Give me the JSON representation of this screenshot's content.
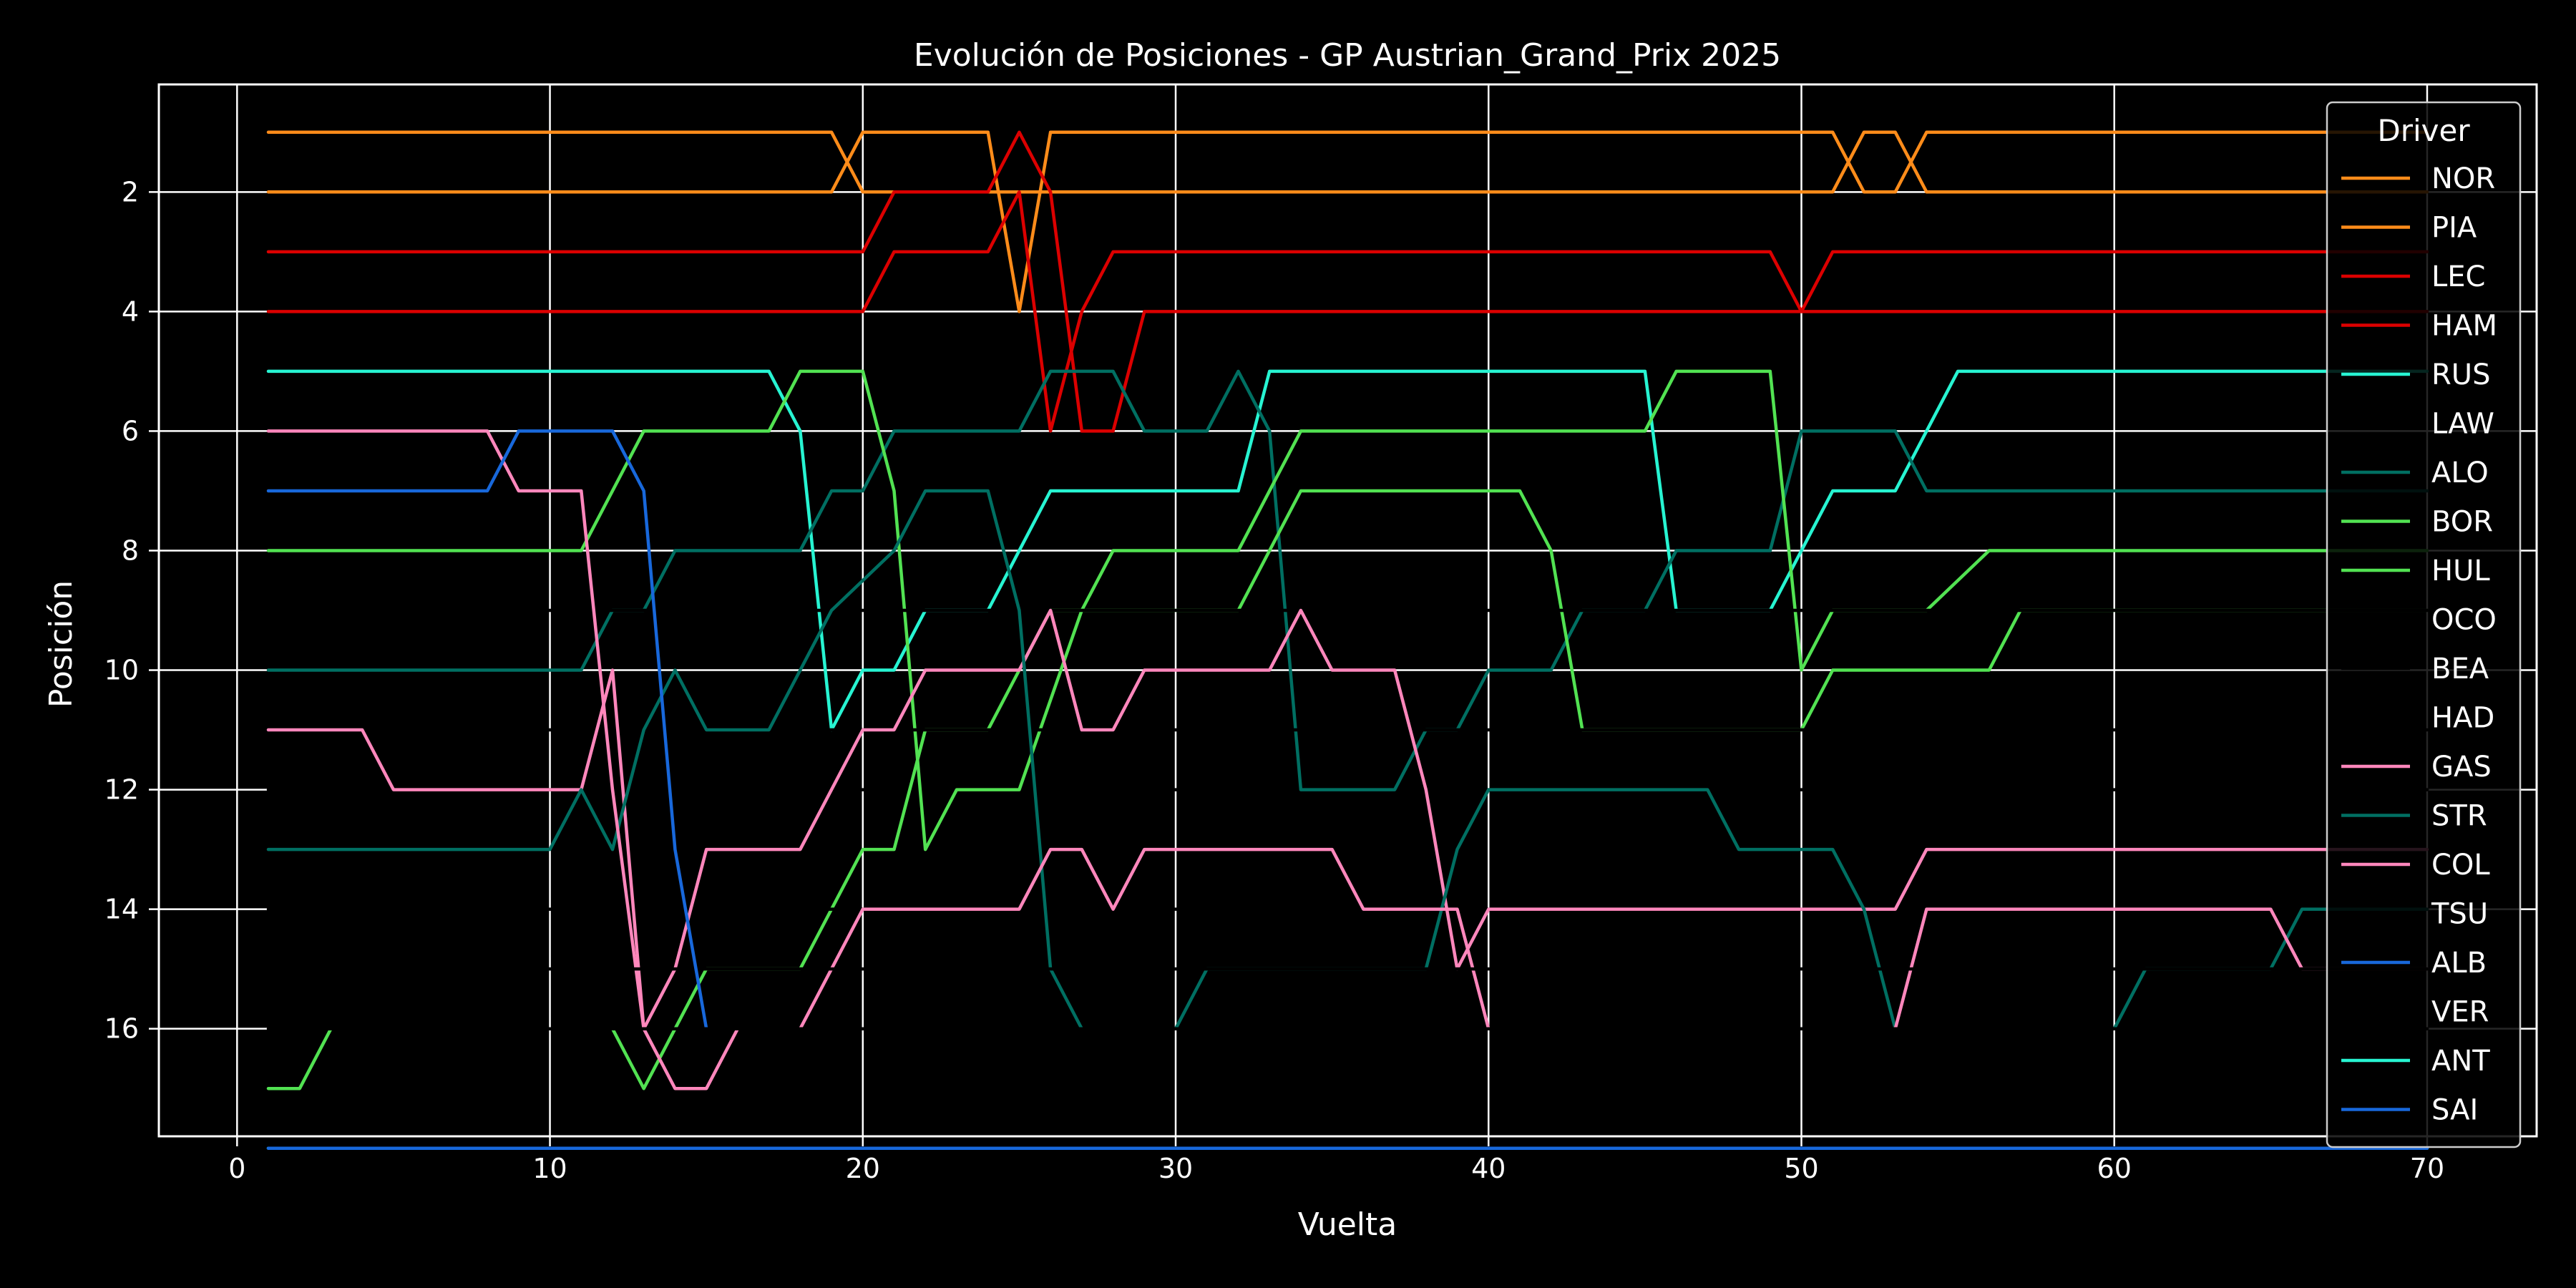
{
  "chart_data": {
    "type": "line",
    "title": "Evolución de Posiciones - GP Austrian_Grand_Prix 2025",
    "xlabel": "Vuelta",
    "ylabel": "Posición",
    "xlim": [
      -2.5,
      73.5
    ],
    "ylim": [
      17.8,
      0.2
    ],
    "y_inverted": true,
    "x_ticks": [
      0,
      10,
      20,
      30,
      40,
      50,
      60,
      70
    ],
    "y_ticks": [
      2,
      4,
      6,
      8,
      10,
      12,
      14,
      16
    ],
    "grid": true,
    "legend": {
      "title": "Driver",
      "position": "top-right"
    },
    "colors": {
      "background": "#000000",
      "text": "#ffffff",
      "grid": "#ffffff"
    },
    "series": [
      {
        "name": "NOR",
        "color": "#ff8c1a",
        "points": [
          [
            1,
            1
          ],
          [
            19,
            1
          ],
          [
            20,
            2
          ],
          [
            51,
            2
          ],
          [
            52,
            1
          ],
          [
            53,
            1
          ],
          [
            54,
            2
          ],
          [
            70,
            2
          ]
        ]
      },
      {
        "name": "PIA",
        "color": "#ff8c1a",
        "points": [
          [
            1,
            2
          ],
          [
            19,
            2
          ],
          [
            20,
            1
          ],
          [
            24,
            1
          ],
          [
            25,
            4
          ],
          [
            26,
            1
          ],
          [
            51,
            1
          ],
          [
            52,
            2
          ],
          [
            53,
            2
          ],
          [
            54,
            1
          ],
          [
            70,
            1
          ]
        ]
      },
      {
        "name": "LEC",
        "color": "#dc0000",
        "points": [
          [
            1,
            3
          ],
          [
            20,
            3
          ],
          [
            21,
            2
          ],
          [
            24,
            2
          ],
          [
            25,
            1
          ],
          [
            26,
            2
          ],
          [
            27,
            6
          ],
          [
            28,
            6
          ],
          [
            29,
            4
          ],
          [
            70,
            4
          ]
        ]
      },
      {
        "name": "HAM",
        "color": "#dc0000",
        "points": [
          [
            1,
            4
          ],
          [
            20,
            4
          ],
          [
            21,
            3
          ],
          [
            24,
            3
          ],
          [
            25,
            2
          ],
          [
            26,
            6
          ],
          [
            27,
            4
          ],
          [
            28,
            3
          ],
          [
            49,
            3
          ],
          [
            50,
            4
          ],
          [
            51,
            3
          ],
          [
            70,
            3
          ]
        ]
      },
      {
        "name": "RUS",
        "color": "#27f4d2",
        "points": [
          [
            1,
            5
          ],
          [
            17,
            5
          ],
          [
            18,
            6
          ],
          [
            19,
            11
          ],
          [
            20,
            10
          ],
          [
            21,
            10
          ],
          [
            22,
            9
          ],
          [
            24,
            9
          ],
          [
            26,
            7
          ],
          [
            32,
            7
          ],
          [
            33,
            5
          ],
          [
            45,
            5
          ],
          [
            46,
            9
          ],
          [
            49,
            9
          ],
          [
            51,
            7
          ],
          [
            53,
            7
          ],
          [
            55,
            5
          ],
          [
            70,
            5
          ]
        ]
      },
      {
        "name": "LAW",
        "color": "#000000",
        "points": [
          [
            1,
            12
          ],
          [
            70,
            12
          ]
        ]
      },
      {
        "name": "ALO",
        "color": "#006f62",
        "points": [
          [
            1,
            10
          ],
          [
            11,
            10
          ],
          [
            12,
            9
          ],
          [
            13,
            9
          ],
          [
            14,
            8
          ],
          [
            18,
            8
          ],
          [
            19,
            7
          ],
          [
            20,
            7
          ],
          [
            21,
            6
          ],
          [
            25,
            6
          ],
          [
            26,
            5
          ],
          [
            28,
            5
          ],
          [
            29,
            6
          ],
          [
            31,
            6
          ],
          [
            32,
            5
          ],
          [
            33,
            6
          ],
          [
            34,
            12
          ],
          [
            37,
            12
          ],
          [
            38,
            11
          ],
          [
            39,
            11
          ],
          [
            40,
            10
          ],
          [
            42,
            10
          ],
          [
            43,
            9
          ],
          [
            45,
            9
          ],
          [
            46,
            8
          ],
          [
            49,
            8
          ],
          [
            50,
            6
          ],
          [
            53,
            6
          ],
          [
            54,
            7
          ],
          [
            70,
            7
          ]
        ]
      },
      {
        "name": "BOR",
        "color": "#52e252",
        "points": [
          [
            1,
            17
          ],
          [
            2,
            17
          ],
          [
            3,
            16
          ],
          [
            12,
            16
          ],
          [
            13,
            17
          ],
          [
            15,
            15
          ],
          [
            18,
            15
          ],
          [
            20,
            13
          ],
          [
            21,
            13
          ],
          [
            22,
            11
          ],
          [
            24,
            11
          ],
          [
            25,
            10
          ],
          [
            26,
            9
          ],
          [
            27,
            9
          ],
          [
            28,
            8
          ],
          [
            32,
            8
          ],
          [
            34,
            6
          ],
          [
            45,
            6
          ],
          [
            46,
            5
          ],
          [
            49,
            5
          ],
          [
            50,
            10
          ],
          [
            51,
            9
          ],
          [
            54,
            9
          ],
          [
            56,
            8
          ],
          [
            70,
            8
          ]
        ]
      },
      {
        "name": "HUL",
        "color": "#52e252",
        "points": [
          [
            1,
            8
          ],
          [
            11,
            8
          ],
          [
            13,
            6
          ],
          [
            17,
            6
          ],
          [
            18,
            5
          ],
          [
            20,
            5
          ],
          [
            21,
            7
          ],
          [
            22,
            13
          ],
          [
            23,
            12
          ],
          [
            25,
            12
          ],
          [
            27,
            9
          ],
          [
            29,
            9
          ],
          [
            32,
            9
          ],
          [
            34,
            7
          ],
          [
            41,
            7
          ],
          [
            42,
            8
          ],
          [
            43,
            11
          ],
          [
            50,
            11
          ],
          [
            51,
            10
          ],
          [
            56,
            10
          ],
          [
            57,
            9
          ],
          [
            70,
            9
          ]
        ]
      },
      {
        "name": "OCO",
        "color": "#000000",
        "points": [
          [
            1,
            11
          ],
          [
            70,
            11
          ]
        ]
      },
      {
        "name": "BEA",
        "color": "#000000",
        "points": [
          [
            1,
            9
          ],
          [
            70,
            9
          ]
        ]
      },
      {
        "name": "HAD",
        "color": "#000000",
        "points": [
          [
            1,
            14
          ],
          [
            70,
            14
          ]
        ]
      },
      {
        "name": "GAS",
        "color": "#ff87bc",
        "points": [
          [
            1,
            11
          ],
          [
            4,
            11
          ],
          [
            5,
            12
          ],
          [
            11,
            12
          ],
          [
            12,
            10
          ],
          [
            13,
            16
          ],
          [
            14,
            15
          ],
          [
            15,
            13
          ],
          [
            18,
            13
          ],
          [
            20,
            11
          ],
          [
            21,
            11
          ],
          [
            22,
            10
          ],
          [
            25,
            10
          ],
          [
            26,
            9
          ],
          [
            27,
            11
          ],
          [
            28,
            11
          ],
          [
            29,
            10
          ],
          [
            33,
            10
          ],
          [
            34,
            9
          ],
          [
            35,
            10
          ],
          [
            37,
            10
          ],
          [
            38,
            12
          ],
          [
            39,
            15
          ],
          [
            40,
            14
          ],
          [
            53,
            14
          ],
          [
            54,
            13
          ],
          [
            70,
            13
          ]
        ]
      },
      {
        "name": "STR",
        "color": "#006f62",
        "points": [
          [
            1,
            13
          ],
          [
            10,
            13
          ],
          [
            11,
            12
          ],
          [
            12,
            13
          ],
          [
            13,
            11
          ],
          [
            14,
            10
          ],
          [
            15,
            11
          ],
          [
            17,
            11
          ],
          [
            19,
            9
          ],
          [
            21,
            8
          ],
          [
            22,
            7
          ],
          [
            24,
            7
          ],
          [
            25,
            9
          ],
          [
            26,
            15
          ],
          [
            27,
            16
          ],
          [
            30,
            16
          ],
          [
            31,
            15
          ],
          [
            38,
            15
          ],
          [
            39,
            13
          ],
          [
            40,
            12
          ],
          [
            47,
            12
          ],
          [
            48,
            13
          ],
          [
            51,
            13
          ],
          [
            52,
            14
          ],
          [
            53,
            16
          ],
          [
            60,
            16
          ],
          [
            61,
            15
          ],
          [
            65,
            15
          ],
          [
            66,
            14
          ],
          [
            70,
            14
          ]
        ]
      },
      {
        "name": "COL",
        "color": "#ff87bc",
        "points": [
          [
            1,
            6
          ],
          [
            8,
            6
          ],
          [
            9,
            7
          ],
          [
            11,
            7
          ],
          [
            12,
            12
          ],
          [
            13,
            16
          ],
          [
            14,
            17
          ],
          [
            15,
            17
          ],
          [
            16,
            16
          ],
          [
            18,
            16
          ],
          [
            20,
            14
          ],
          [
            25,
            14
          ],
          [
            26,
            13
          ],
          [
            27,
            13
          ],
          [
            28,
            14
          ],
          [
            29,
            13
          ],
          [
            35,
            13
          ],
          [
            36,
            14
          ],
          [
            38,
            14
          ],
          [
            39,
            14
          ],
          [
            40,
            16
          ],
          [
            53,
            16
          ],
          [
            54,
            14
          ],
          [
            65,
            14
          ],
          [
            66,
            15
          ],
          [
            70,
            15
          ]
        ]
      },
      {
        "name": "TSU",
        "color": "#000000",
        "points": [
          [
            1,
            15
          ],
          [
            70,
            15
          ]
        ]
      },
      {
        "name": "ALB",
        "color": "#1868db",
        "points": [
          [
            1,
            7
          ],
          [
            8,
            7
          ],
          [
            9,
            6
          ],
          [
            12,
            6
          ],
          [
            13,
            7
          ],
          [
            14,
            13
          ],
          [
            15,
            16
          ]
        ]
      },
      {
        "name": "VER",
        "color": "#000000",
        "points": [
          [
            1,
            16
          ],
          [
            70,
            16
          ]
        ]
      },
      {
        "name": "ANT",
        "color": "#27f4d2",
        "points": [
          [
            1,
            18
          ],
          [
            70,
            18
          ]
        ]
      },
      {
        "name": "SAI",
        "color": "#1868db",
        "points": [
          [
            1,
            18
          ],
          [
            70,
            18
          ]
        ]
      }
    ]
  }
}
